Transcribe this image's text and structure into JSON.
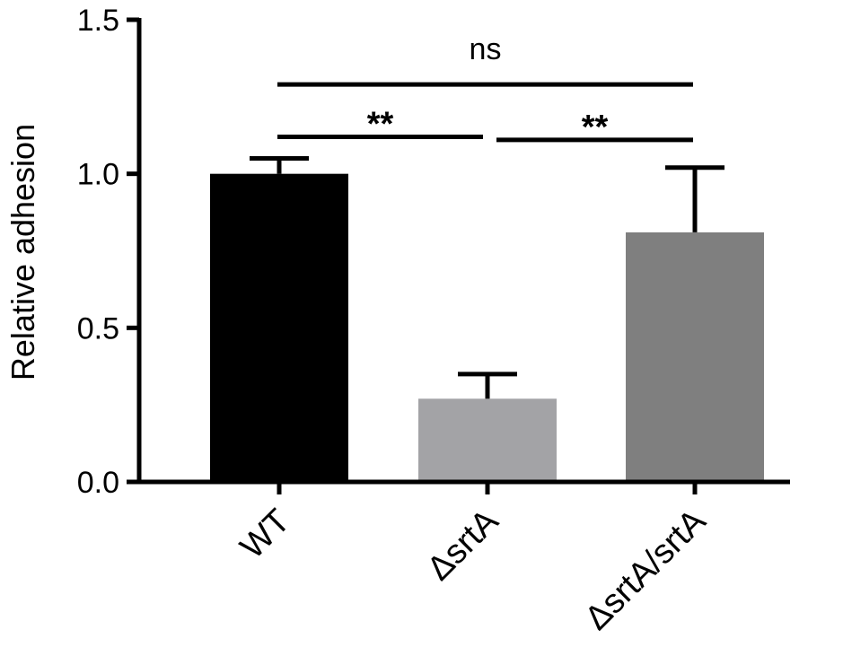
{
  "chart_data": {
    "type": "bar",
    "title": "",
    "xlabel": "",
    "ylabel": "Relative adhesion",
    "ylim": [
      0,
      1.5
    ],
    "yticks": [
      {
        "value": 0.0,
        "label": "0.0"
      },
      {
        "value": 0.5,
        "label": "0.5"
      },
      {
        "value": 1.0,
        "label": "1.0"
      },
      {
        "value": 1.5,
        "label": "1.5"
      }
    ],
    "grid": false,
    "categories": [
      "WT",
      "ΔsrtA",
      "ΔsrtA/srtA"
    ],
    "values": [
      1.0,
      0.27,
      0.81
    ],
    "error_plus": [
      0.05,
      0.08,
      0.21
    ],
    "bar_colors": [
      "#000000",
      "#a3a3a6",
      "#7f7f7f"
    ],
    "significance": [
      {
        "from": 0,
        "to": 2,
        "label": "ns",
        "y": 1.29
      },
      {
        "from": 0,
        "to": 1,
        "label": "**",
        "y": 1.12
      },
      {
        "from": 1,
        "to": 2,
        "label": "**",
        "y": 1.11
      }
    ]
  }
}
